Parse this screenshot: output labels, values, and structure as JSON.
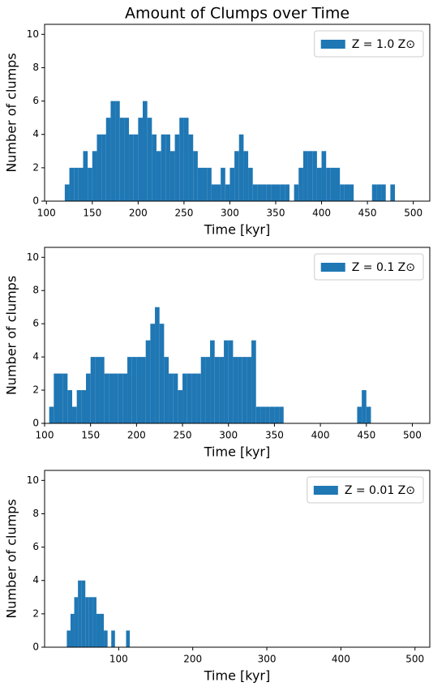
{
  "chart_data": [
    {
      "type": "histogram",
      "title": "Amount of Clumps over Time",
      "xlabel": "Time [kyr]",
      "ylabel": "Number of clumps",
      "series": [
        {
          "name": "Z = 1.0 Z⊙",
          "color": "#1f77b4",
          "bins": [
            120,
            125,
            130,
            135,
            140,
            145,
            150,
            155,
            160,
            165,
            170,
            175,
            180,
            185,
            190,
            195,
            200,
            205,
            210,
            215,
            220,
            225,
            230,
            235,
            240,
            245,
            250,
            255,
            260,
            265,
            270,
            275,
            280,
            285,
            290,
            295,
            300,
            305,
            310,
            315,
            320,
            325,
            330,
            335,
            340,
            345,
            350,
            355,
            360,
            365,
            370,
            375,
            380,
            385,
            390,
            395,
            400,
            405,
            410,
            415,
            420,
            425,
            430,
            435,
            440,
            445,
            450,
            455,
            460,
            465,
            470,
            475,
            480,
            485
          ],
          "values": [
            1,
            2,
            2,
            2,
            3,
            2,
            3,
            4,
            4,
            5,
            6,
            6,
            5,
            5,
            4,
            4,
            5,
            6,
            5,
            4,
            3,
            4,
            4,
            3,
            4,
            5,
            5,
            4,
            3,
            2,
            2,
            2,
            1,
            1,
            2,
            1,
            2,
            3,
            4,
            3,
            2,
            1,
            1,
            1,
            1,
            1,
            1,
            1,
            1,
            0,
            1,
            2,
            3,
            3,
            3,
            2,
            3,
            2,
            2,
            2,
            1,
            1,
            1,
            0,
            0,
            0,
            0,
            1,
            1,
            1,
            0,
            1,
            0
          ]
        }
      ],
      "xlim": [
        98,
        518
      ],
      "ylim": [
        0,
        10.6
      ],
      "xticks": [
        100,
        150,
        200,
        250,
        300,
        350,
        400,
        450,
        500
      ],
      "yticks": [
        0,
        2,
        4,
        6,
        8,
        10
      ],
      "legend": "upper right"
    },
    {
      "type": "histogram",
      "xlabel": "Time [kyr]",
      "ylabel": "Number of clumps",
      "series": [
        {
          "name": "Z = 0.1 Z⊙",
          "color": "#1f77b4",
          "bins": [
            105,
            110,
            115,
            120,
            125,
            130,
            135,
            140,
            145,
            150,
            155,
            160,
            165,
            170,
            175,
            180,
            185,
            190,
            195,
            200,
            205,
            210,
            215,
            220,
            225,
            230,
            235,
            240,
            245,
            250,
            255,
            260,
            265,
            270,
            275,
            280,
            285,
            290,
            295,
            300,
            305,
            310,
            315,
            320,
            325,
            330,
            335,
            340,
            345,
            350,
            355,
            360,
            365,
            370,
            375,
            380,
            385,
            390,
            395,
            400,
            405,
            410,
            415,
            420,
            425,
            430,
            435,
            440,
            445,
            450,
            455
          ],
          "values": [
            1,
            3,
            3,
            3,
            2,
            1,
            2,
            2,
            3,
            4,
            4,
            4,
            3,
            3,
            3,
            3,
            3,
            4,
            4,
            4,
            4,
            5,
            6,
            7,
            6,
            4,
            3,
            3,
            2,
            3,
            3,
            3,
            3,
            4,
            4,
            5,
            4,
            4,
            5,
            5,
            4,
            4,
            4,
            4,
            5,
            1,
            1,
            1,
            1,
            1,
            1,
            0,
            0,
            0,
            0,
            0,
            0,
            0,
            0,
            0,
            0,
            0,
            0,
            0,
            0,
            0,
            0,
            1,
            2,
            1
          ]
        }
      ],
      "xlim": [
        100,
        519
      ],
      "ylim": [
        0,
        10.6
      ],
      "xticks": [
        100,
        150,
        200,
        250,
        300,
        350,
        400,
        450,
        500
      ],
      "yticks": [
        0,
        2,
        4,
        6,
        8,
        10
      ],
      "legend": "upper right"
    },
    {
      "type": "histogram",
      "xlabel": "Time [kyr]",
      "ylabel": "Number of clumps",
      "series": [
        {
          "name": "Z = 0.01 Z⊙",
          "color": "#1f77b4",
          "bins": [
            30,
            35,
            40,
            45,
            50,
            55,
            60,
            65,
            70,
            75,
            80,
            85,
            90,
            95,
            100,
            105,
            110,
            115
          ],
          "values": [
            1,
            2,
            3,
            4,
            4,
            3,
            3,
            3,
            2,
            2,
            1,
            0,
            1,
            0,
            0,
            0,
            1
          ]
        }
      ],
      "xlim": [
        0,
        520
      ],
      "ylim": [
        0,
        10.6
      ],
      "xticks": [
        100,
        200,
        300,
        400,
        500
      ],
      "yticks": [
        0,
        2,
        4,
        6,
        8,
        10
      ],
      "legend": "upper right"
    }
  ]
}
